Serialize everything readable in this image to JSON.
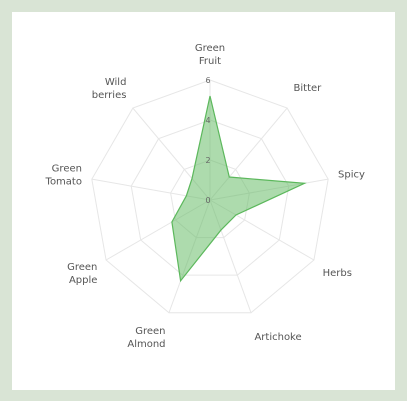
{
  "chart_data": {
    "type": "radar",
    "categories": [
      "Green Fruit",
      "Bitter",
      "Spicy",
      "Herbs",
      "Artichoke",
      "Green Almond",
      "Green Apple",
      "Green Tomato",
      "Wild berries"
    ],
    "values": [
      5.2,
      1.5,
      4.8,
      1.5,
      1.6,
      4.3,
      2.2,
      1.2,
      1.4
    ],
    "color": "#5cb85c",
    "ylim": [
      0,
      6
    ],
    "yticks": [
      0,
      2,
      4,
      6
    ],
    "grid": true
  }
}
